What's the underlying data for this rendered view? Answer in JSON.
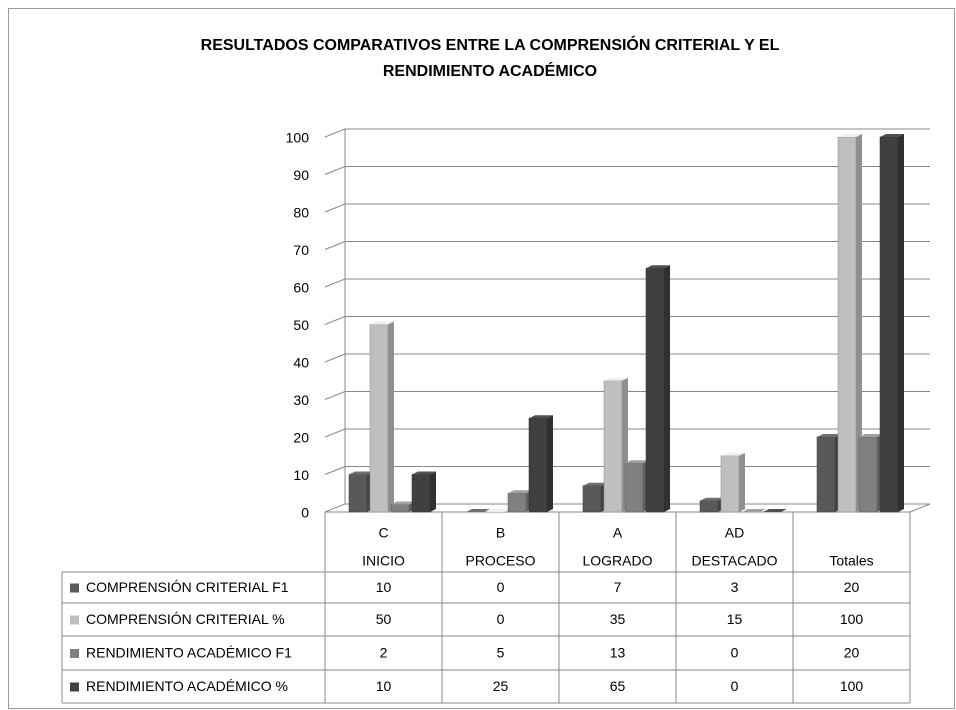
{
  "chart_data": {
    "type": "bar3d",
    "title": [
      "RESULTADOS COMPARATIVOS ENTRE LA COMPRENSIÓN CRITERIAL Y EL",
      "RENDIMIENTO ACADÉMICO"
    ],
    "categories": [
      [
        "C",
        "INICIO"
      ],
      [
        "B",
        "PROCESO"
      ],
      [
        "A",
        "LOGRADO"
      ],
      [
        "AD",
        "DESTACADO"
      ],
      [
        "Totales"
      ]
    ],
    "series": [
      {
        "name": "COMPRENSIÓN CRITERIAL F1",
        "color": "#595959",
        "values": [
          10,
          0,
          7,
          3,
          20
        ]
      },
      {
        "name": "COMPRENSIÓN CRITERIAL %",
        "color": "#bfbfbf",
        "values": [
          50,
          0,
          35,
          15,
          100
        ]
      },
      {
        "name": "RENDIMIENTO ACADÉMICO F1",
        "color": "#808080",
        "values": [
          2,
          5,
          13,
          0,
          20
        ]
      },
      {
        "name": "RENDIMIENTO ACADÉMICO %",
        "color": "#404040",
        "values": [
          10,
          25,
          65,
          0,
          100
        ]
      }
    ],
    "ylim": [
      0,
      100
    ],
    "yticks": [
      0,
      10,
      20,
      30,
      40,
      50,
      60,
      70,
      80,
      90,
      100
    ],
    "grid": true
  }
}
